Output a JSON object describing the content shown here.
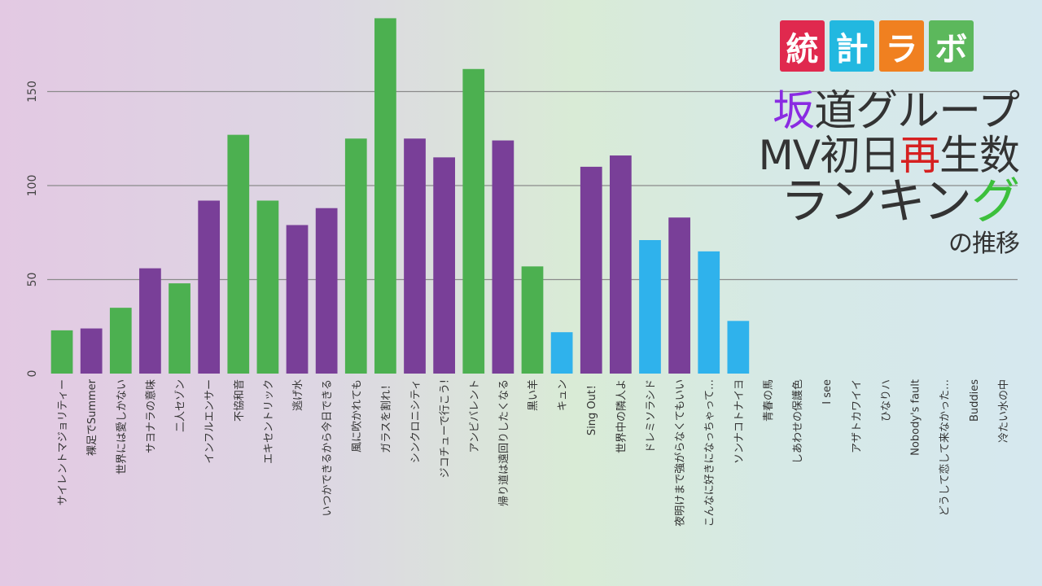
{
  "logo": {
    "chars": [
      "統",
      "計",
      "ラ",
      "ボ"
    ],
    "colors": [
      "#e0294e",
      "#22b8e0",
      "#f08020",
      "#5cb85c"
    ]
  },
  "title": {
    "line1_accent": "坂",
    "line1_rest": "道グループ",
    "line2_pre": "MV初日",
    "line2_accent": "再",
    "line2_post": "生数",
    "line3_pre": "ランキン",
    "line3_accent": "グ",
    "line4": "の推移",
    "accent_colors": {
      "line1": "#8a2be2",
      "line2": "#d62020",
      "line3": "#3cc03c"
    }
  },
  "chart_data": {
    "type": "bar",
    "yticks": [
      0,
      50,
      100,
      150
    ],
    "ylim": [
      0,
      190
    ],
    "grid": true,
    "group_colors": {
      "green": "#4cb050",
      "purple": "#793f98",
      "blue": "#2fb2ec"
    },
    "categories": [
      "サイレントマジョリティー",
      "裸足でSummer",
      "世界には愛しかない",
      "サヨナラの意味",
      "二人セゾン",
      "インフルエンサー",
      "不協和音",
      "エキセントリック",
      "逃げ水",
      "いつかできるから今日できる",
      "風に吹かれても",
      "ガラスを割れ！",
      "シンクロニシティ",
      "ジコチューで行こう!",
      "アンビバレント",
      "帰り道は遠回りしたくなる",
      "黒い羊",
      "キュン",
      "Sing Out！",
      "世界中の隣人よ",
      "ドレミソラシド",
      "夜明けまで強がらなくてもいい",
      "こんなに好きになっちゃって…",
      "ソンナコトナイヨ",
      "青春の馬",
      "しあわせの保護色",
      "I see",
      "アザトカワイイ",
      "ひなりハ",
      "Nobody's fault",
      "どうして恋して来なかった…",
      "Buddies",
      "冷たい水の中"
    ],
    "values": [
      23,
      24,
      35,
      56,
      48,
      92,
      127,
      92,
      79,
      88,
      125,
      189,
      125,
      115,
      162,
      124,
      57,
      22,
      110,
      116,
      71,
      83,
      65,
      28,
      null,
      null,
      null,
      null,
      null,
      null,
      null,
      null,
      null
    ],
    "groups": [
      "green",
      "purple",
      "green",
      "purple",
      "green",
      "purple",
      "green",
      "green",
      "purple",
      "purple",
      "green",
      "green",
      "purple",
      "purple",
      "green",
      "purple",
      "green",
      "blue",
      "purple",
      "purple",
      "blue",
      "purple",
      "blue",
      "blue",
      "green",
      "purple",
      "green",
      "blue",
      "purple",
      "green",
      "blue",
      "green",
      "purple"
    ]
  }
}
